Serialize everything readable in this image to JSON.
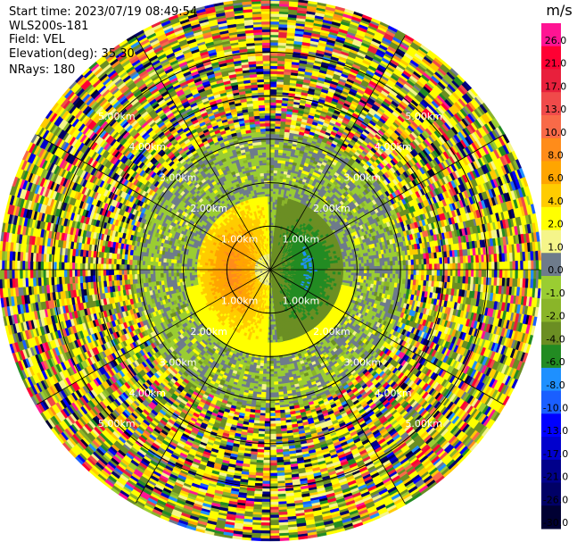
{
  "header": {
    "start_time": "Start time: 2023/07/19 08:49:54",
    "instrument": "WLS200s-181",
    "field": "Field: VEL",
    "elevation": "Elevation(deg): 35.30",
    "nrays": "NRays: 180"
  },
  "chart_data": {
    "type": "heatmap",
    "projection": "polar-ppi",
    "field": "VEL",
    "unit": "m/s",
    "n_rays": 180,
    "elevation_deg": 35.3,
    "range_rings_km": [
      1,
      2,
      3,
      4,
      5
    ],
    "range_ring_labels": [
      "1.00km",
      "2.00km",
      "3.00km",
      "4.00km",
      "5.00km"
    ],
    "max_range_km": 6.2,
    "spokes_every_deg": 30,
    "colorbar": {
      "unit_label": "m/s",
      "tick_labels": [
        "26.0",
        "21.0",
        "17.0",
        "13.0",
        "10.0",
        "8.0",
        "6.0",
        "4.0",
        "2.0",
        "1.0",
        "0.0",
        "-1.0",
        "-2.0",
        "-4.0",
        "-6.0",
        "-8.0",
        "-10.0",
        "-13.0",
        "-17.0",
        "-21.0",
        "-26.0",
        "-30.0"
      ],
      "colors": [
        "#ff1493",
        "#ff0033",
        "#e8203c",
        "#f04a4a",
        "#f86a48",
        "#ff8c1a",
        "#ffa500",
        "#ffcc00",
        "#ffff00",
        "#f5f58a",
        "#6e7b8b",
        "#9acd32",
        "#8ab529",
        "#6b8e23",
        "#228b22",
        "#1e90ff",
        "#1a5fff",
        "#0000ff",
        "#0000cd",
        "#00008b",
        "#000066",
        "#000033"
      ]
    },
    "approx_structure": {
      "inner_positive_region_east_to_west": "west side shows +2 to +10 m/s (yellow/orange) within ~1.7 km",
      "inner_negative_region": "east side shows -2 to -6 m/s (green) within ~1.6 km",
      "mid_band": "0 m/s (gray) annulus from ~1.5 to ~3.2 km",
      "outer_band": "noisy mixed values beyond ~3.2 km"
    }
  }
}
